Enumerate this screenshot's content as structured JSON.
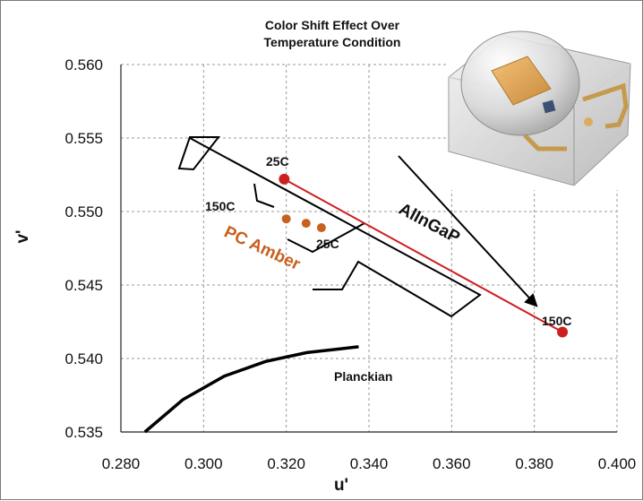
{
  "chart_data": {
    "type": "scatter",
    "title_lines": [
      "Color Shift  Effect Over",
      "Temperature Condition"
    ],
    "xlabel": "u'",
    "ylabel": "v'",
    "xlim": [
      0.28,
      0.4
    ],
    "ylim": [
      0.535,
      0.56
    ],
    "x_ticks": [
      "0.280",
      "0.300",
      "0.320",
      "0.340",
      "0.360",
      "0.380",
      "0.400"
    ],
    "y_ticks": [
      "0.535",
      "0.540",
      "0.545",
      "0.550",
      "0.555",
      "0.560"
    ],
    "grid": true,
    "series": [
      {
        "name": "AlInGaP",
        "color": "#cc1f1f",
        "points": [
          {
            "x": 0.3195,
            "y": 0.5522,
            "label": "25C"
          },
          {
            "x": 0.3868,
            "y": 0.5418,
            "label": "150C"
          }
        ]
      },
      {
        "name": "PC Amber",
        "color": "#c8601e",
        "points": [
          {
            "x": 0.32,
            "y": 0.5495
          },
          {
            "x": 0.3248,
            "y": 0.5492
          },
          {
            "x": 0.3285,
            "y": 0.5489
          }
        ],
        "labels": [
          "150C",
          "25C"
        ]
      },
      {
        "name": "Planckian",
        "color": "#000000",
        "points": [
          {
            "x": 0.2858,
            "y": 0.535
          },
          {
            "x": 0.295,
            "y": 0.5372
          },
          {
            "x": 0.305,
            "y": 0.5388
          },
          {
            "x": 0.315,
            "y": 0.5398
          },
          {
            "x": 0.325,
            "y": 0.5404
          },
          {
            "x": 0.3375,
            "y": 0.5408
          }
        ]
      }
    ]
  }
}
